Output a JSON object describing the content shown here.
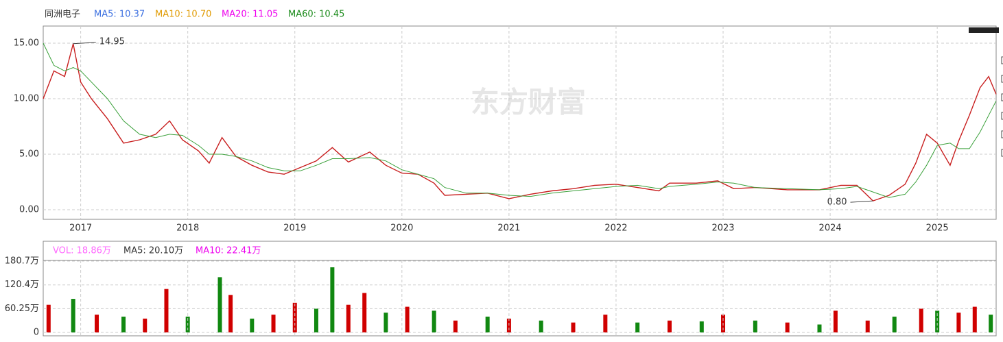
{
  "header": {
    "title": "同洲电子",
    "legend": [
      {
        "text": "MA5: 10.37",
        "color": "#3b6fe0"
      },
      {
        "text": "MA10: 10.70",
        "color": "#e09a00"
      },
      {
        "text": "MA20: 11.05",
        "color": "#ee00ee"
      },
      {
        "text": "MA60: 10.45",
        "color": "#1a8a1a"
      }
    ]
  },
  "watermark": "东方财富",
  "chart_data": [
    {
      "type": "line",
      "x": [
        2016.65,
        2016.75,
        2016.85,
        2016.93,
        2017.0,
        2017.1,
        2017.25,
        2017.4,
        2017.55,
        2017.7,
        2017.83,
        2017.95,
        2018.1,
        2018.2,
        2018.32,
        2018.45,
        2018.6,
        2018.75,
        2018.9,
        2019.05,
        2019.2,
        2019.35,
        2019.5,
        2019.7,
        2019.85,
        2020.0,
        2020.15,
        2020.3,
        2020.4,
        2020.6,
        2020.8,
        2021.0,
        2021.2,
        2021.4,
        2021.6,
        2021.8,
        2022.0,
        2022.2,
        2022.4,
        2022.5,
        2022.75,
        2022.95,
        2023.1,
        2023.3,
        2023.6,
        2023.9,
        2024.1,
        2024.25,
        2024.4,
        2024.55,
        2024.7,
        2024.8,
        2024.9,
        2025.0,
        2025.12,
        2025.2,
        2025.3,
        2025.4,
        2025.48,
        2025.55
      ],
      "series": [
        {
          "color": "#c81e1e",
          "values": [
            10.0,
            12.5,
            12.0,
            14.95,
            11.5,
            10.0,
            8.2,
            6.0,
            6.3,
            6.8,
            8.0,
            6.3,
            5.3,
            4.2,
            6.5,
            4.8,
            4.0,
            3.4,
            3.2,
            3.8,
            4.4,
            5.6,
            4.3,
            5.2,
            4.0,
            3.3,
            3.2,
            2.4,
            1.3,
            1.4,
            1.5,
            1.0,
            1.4,
            1.7,
            1.9,
            2.2,
            2.3,
            2.0,
            1.7,
            2.4,
            2.4,
            2.6,
            1.9,
            2.0,
            1.8,
            1.8,
            2.2,
            2.2,
            0.8,
            1.3,
            2.3,
            4.2,
            6.8,
            6.0,
            4.0,
            6.2,
            8.5,
            11.0,
            12.0,
            10.4
          ]
        },
        {
          "color": "#3aa03a",
          "values": [
            15.0,
            13.0,
            12.5,
            12.8,
            12.5,
            11.5,
            10.0,
            8.0,
            6.8,
            6.5,
            6.8,
            6.7,
            5.8,
            5.0,
            5.0,
            4.8,
            4.4,
            3.8,
            3.5,
            3.5,
            4.0,
            4.6,
            4.6,
            4.7,
            4.4,
            3.6,
            3.2,
            2.8,
            2.0,
            1.5,
            1.5,
            1.3,
            1.2,
            1.5,
            1.7,
            1.9,
            2.1,
            2.2,
            1.9,
            2.1,
            2.3,
            2.5,
            2.4,
            2.0,
            1.9,
            1.8,
            1.9,
            2.1,
            1.6,
            1.1,
            1.4,
            2.5,
            4.0,
            5.8,
            6.0,
            5.5,
            5.5,
            7.0,
            8.5,
            9.8
          ]
        }
      ],
      "xlim": [
        2016.65,
        2025.55
      ],
      "xticks": [
        2017,
        2018,
        2019,
        2020,
        2021,
        2022,
        2023,
        2024,
        2025
      ],
      "ylim": [
        -0.86,
        16.54
      ],
      "yticks": [
        {
          "value": 0,
          "label": "0.00"
        },
        {
          "value": 5,
          "label": "5.00"
        },
        {
          "value": 10,
          "label": "10.00"
        },
        {
          "value": 15,
          "label": "15.00"
        }
      ],
      "grid": true,
      "annotations": [
        {
          "text": "14.95",
          "x": 2016.93,
          "y": 14.95
        },
        {
          "text": "0.80",
          "x": 2024.4,
          "y": 0.8
        }
      ]
    },
    {
      "type": "bar",
      "legend": [
        {
          "text": "VOL: 18.86万",
          "color": "#ff66ff"
        },
        {
          "text": "MA5: 20.10万",
          "color": "#333333"
        },
        {
          "text": "MA10: 22.41万",
          "color": "#ee00ee"
        }
      ],
      "x": [
        2016.7,
        2016.93,
        2017.15,
        2017.4,
        2017.6,
        2017.8,
        2018.0,
        2018.3,
        2018.4,
        2018.6,
        2018.8,
        2019.0,
        2019.2,
        2019.35,
        2019.5,
        2019.65,
        2019.85,
        2020.05,
        2020.3,
        2020.5,
        2020.8,
        2021.0,
        2021.3,
        2021.6,
        2021.9,
        2022.2,
        2022.5,
        2022.8,
        2023.0,
        2023.3,
        2023.6,
        2023.9,
        2024.05,
        2024.35,
        2024.6,
        2024.85,
        2025.0,
        2025.2,
        2025.35,
        2025.5
      ],
      "values": [
        70,
        85,
        45,
        40,
        35,
        110,
        40,
        140,
        95,
        35,
        45,
        75,
        60,
        165,
        70,
        100,
        50,
        65,
        55,
        30,
        40,
        35,
        30,
        25,
        45,
        25,
        30,
        28,
        45,
        30,
        25,
        20,
        55,
        30,
        40,
        60,
        55,
        50,
        65,
        45
      ],
      "colors": [
        "#d00000",
        "#118811",
        "#d00000",
        "#118811",
        "#d00000",
        "#d00000",
        "#118811",
        "#118811",
        "#d00000",
        "#118811",
        "#d00000",
        "#d00000",
        "#118811",
        "#118811",
        "#d00000",
        "#d00000",
        "#118811",
        "#d00000",
        "#118811",
        "#d00000",
        "#118811",
        "#d00000",
        "#118811",
        "#d00000",
        "#d00000",
        "#118811",
        "#d00000",
        "#118811",
        "#d00000",
        "#118811",
        "#d00000",
        "#118811",
        "#d00000",
        "#d00000",
        "#118811",
        "#d00000",
        "#118811",
        "#d00000",
        "#d00000",
        "#118811"
      ],
      "xlim": [
        2016.65,
        2025.55
      ],
      "ylim": [
        0,
        182.4
      ],
      "yticks": [
        {
          "value": 0,
          "label": "0"
        },
        {
          "value": 60.25,
          "label": "60.25万"
        },
        {
          "value": 120.4,
          "label": "120.4万"
        },
        {
          "value": 180.7,
          "label": "180.7万"
        }
      ],
      "grid": true
    }
  ]
}
